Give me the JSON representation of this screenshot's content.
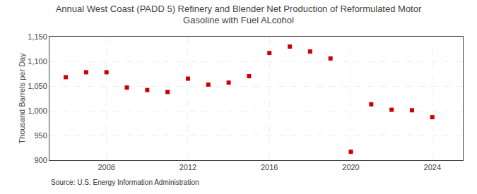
{
  "chart_data": {
    "type": "scatter",
    "title": "Annual West Coast (PADD 5) Refinery and Blender Net Production of Reformulated Motor\nGasoline with Fuel ALcohol",
    "ylabel": "Thousand Barrels per Day",
    "annotations": [
      "Source: U.S. Energy Information Administration"
    ],
    "x": [
      2006,
      2007,
      2008,
      2009,
      2010,
      2011,
      2012,
      2013,
      2014,
      2015,
      2016,
      2017,
      2018,
      2019,
      2020,
      2021,
      2022,
      2023,
      2024
    ],
    "values": [
      1068,
      1078,
      1078,
      1047,
      1042,
      1038,
      1065,
      1053,
      1057,
      1070,
      1117,
      1130,
      1120,
      1106,
      917,
      1013,
      1002,
      1001,
      987
    ],
    "color": "#cc0000",
    "marker": "square",
    "xlim": [
      2005.2,
      2025.5
    ],
    "xticks": [
      2008,
      2012,
      2016,
      2020,
      2024
    ],
    "ylim": [
      900,
      1150
    ],
    "yticks": [
      900,
      950,
      {
        "value": 1000,
        "label": "1,000"
      },
      {
        "value": 1050,
        "label": "1,050"
      },
      {
        "value": 1100,
        "label": "1,100"
      },
      {
        "value": 1150,
        "label": "1,150"
      }
    ],
    "grid": true
  }
}
